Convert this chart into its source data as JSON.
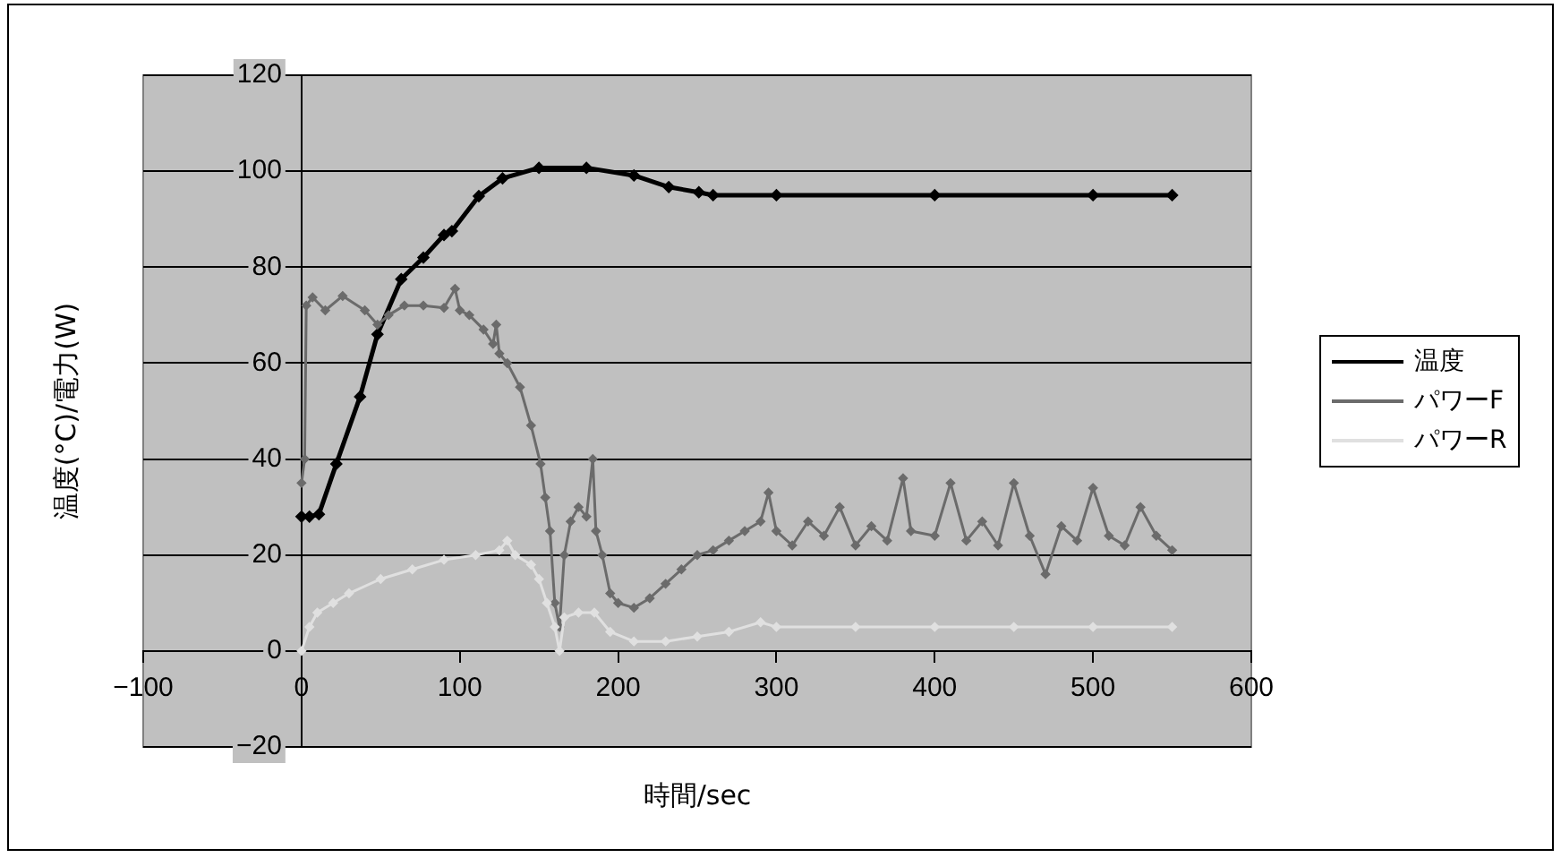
{
  "chart_data": {
    "type": "line",
    "xlabel": "時間/sec",
    "ylabel": "温度(°C)/電力(W)",
    "xlim": [
      -100,
      600
    ],
    "xticks": [
      -100,
      0,
      100,
      200,
      300,
      400,
      500,
      600
    ],
    "ylim": [
      -20,
      120
    ],
    "yticks": [
      -20,
      0,
      20,
      40,
      60,
      80,
      100,
      120
    ],
    "grid": "y",
    "legend": "right",
    "marker": "diamond",
    "line_style": "solid",
    "series": [
      {
        "name": "温度",
        "color": "#000000",
        "x": [
          0,
          5,
          11,
          22,
          37,
          48,
          63,
          77,
          90,
          95,
          112,
          127,
          150,
          180,
          210,
          232,
          251,
          260,
          300,
          400,
          500,
          550
        ],
        "values": [
          28,
          28,
          28.5,
          39,
          53,
          66,
          77.5,
          82,
          86.7,
          87.5,
          94.8,
          98.5,
          100.7,
          100.7,
          99.1,
          96.7,
          95.6,
          95,
          95,
          95,
          95,
          95
        ]
      },
      {
        "name": "パワーF",
        "color": "#6b6b6b",
        "x": [
          0,
          2,
          3,
          7,
          15,
          26,
          40,
          48,
          55,
          65,
          77,
          90,
          97,
          100,
          106,
          115,
          121,
          123,
          125,
          130,
          138,
          145,
          151,
          154,
          157,
          160,
          163,
          166,
          170,
          175,
          180,
          184,
          186,
          190,
          195,
          200,
          210,
          220,
          230,
          240,
          250,
          260,
          270,
          280,
          290,
          295,
          300,
          310,
          320,
          330,
          340,
          350,
          360,
          370,
          380,
          385,
          400,
          410,
          420,
          430,
          440,
          450,
          460,
          470,
          480,
          490,
          500,
          510,
          520,
          530,
          540,
          550
        ],
        "values": [
          35,
          40,
          72,
          73.7,
          71,
          74,
          71,
          68,
          70,
          72,
          72,
          71.5,
          75.5,
          71,
          70,
          67,
          64,
          68,
          62,
          60,
          55,
          47,
          39,
          32,
          25,
          10,
          5,
          20,
          27,
          30,
          28,
          40,
          25,
          20,
          12,
          10,
          9,
          11,
          14,
          17,
          20,
          21,
          23,
          25,
          27,
          33,
          25,
          22,
          27,
          24,
          30,
          22,
          26,
          23,
          36,
          25,
          24,
          35,
          23,
          27,
          22,
          35,
          24,
          16,
          26,
          23,
          34,
          24,
          22,
          30,
          24,
          21
        ]
      },
      {
        "name": "パワーR",
        "color": "#e0e0e0",
        "x": [
          0,
          5,
          10,
          20,
          30,
          50,
          70,
          90,
          110,
          125,
          130,
          135,
          145,
          150,
          155,
          160,
          163,
          166,
          175,
          185,
          195,
          210,
          230,
          250,
          270,
          290,
          300,
          350,
          400,
          450,
          500,
          550
        ],
        "values": [
          0,
          5,
          8,
          10,
          12,
          15,
          17,
          19,
          20,
          21,
          23,
          20,
          18,
          15,
          10,
          5,
          0,
          7,
          8,
          8,
          4,
          2,
          2,
          3,
          4,
          6,
          5,
          5,
          5,
          5,
          5,
          5
        ]
      }
    ]
  }
}
